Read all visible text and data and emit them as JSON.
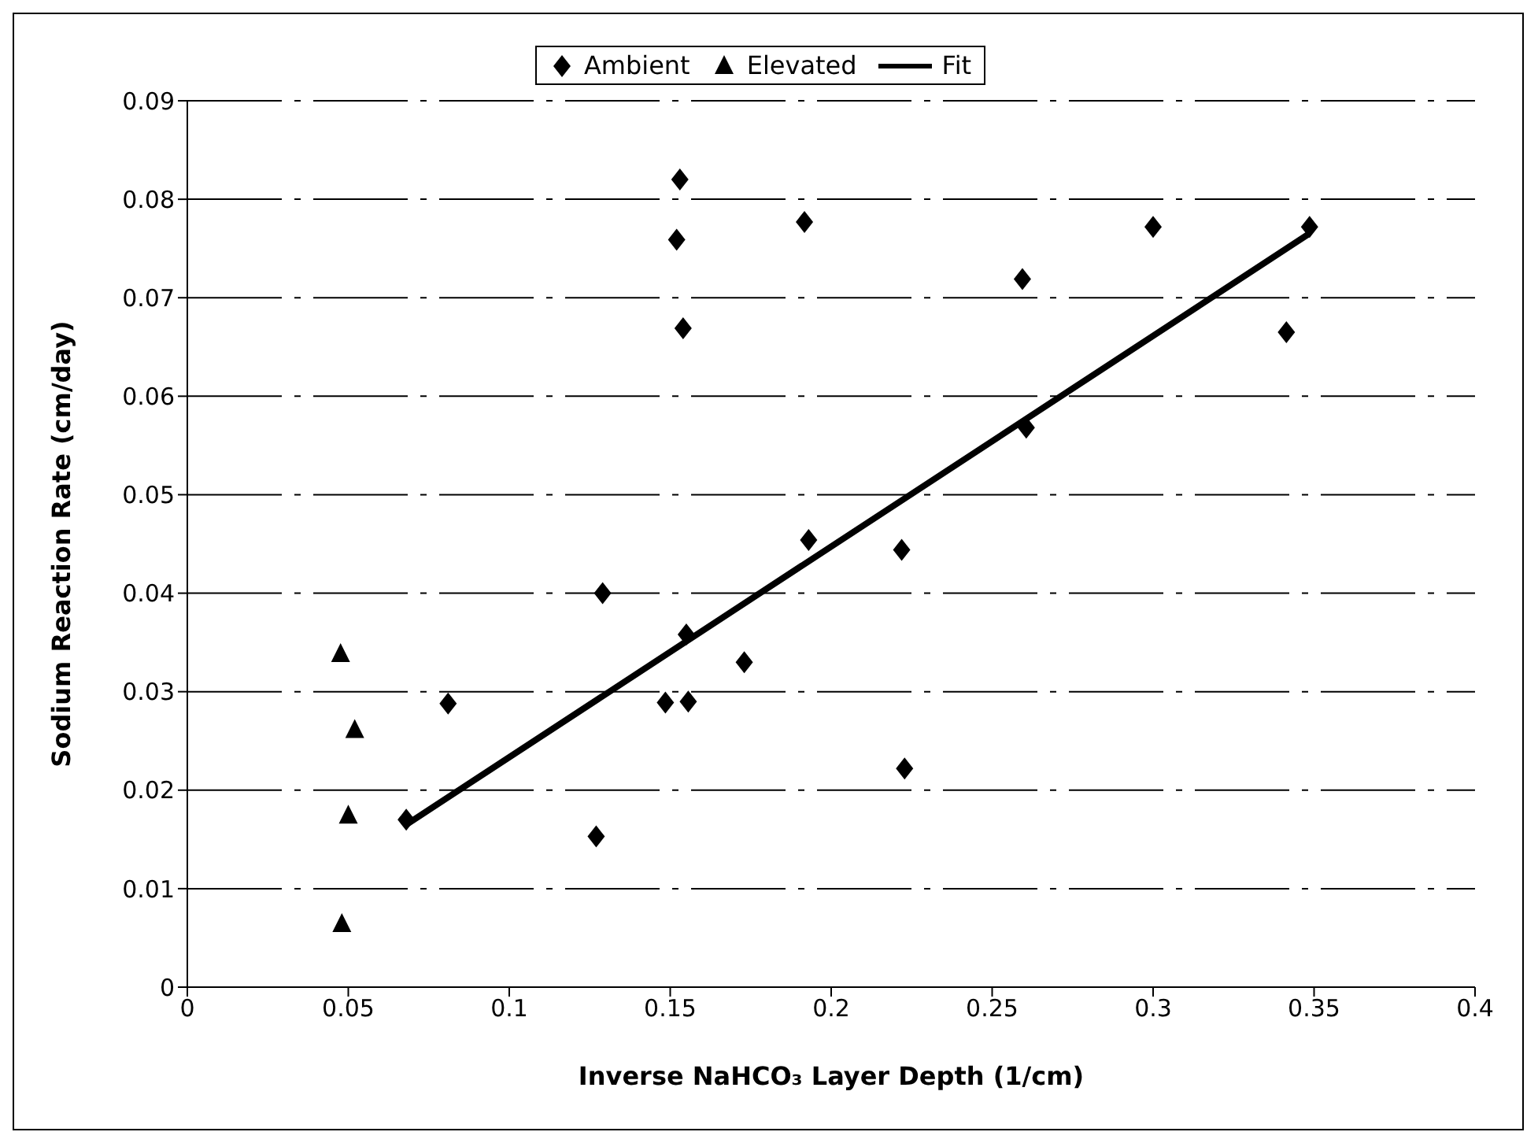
{
  "chart_data": {
    "type": "scatter",
    "xlabel": "Inverse NaHCO₃ Layer Depth (1/cm)",
    "ylabel": "Sodium Reaction Rate (cm/day)",
    "xlim": [
      0,
      0.4
    ],
    "xticks": [
      0,
      0.05,
      0.1,
      0.15,
      0.2,
      0.25,
      0.3,
      0.35,
      0.4
    ],
    "ylim": [
      0,
      0.09
    ],
    "yticks": [
      0,
      0.01,
      0.02,
      0.03,
      0.04,
      0.05,
      0.06,
      0.07,
      0.08,
      0.09
    ],
    "grid": "y",
    "legend": "top",
    "series": [
      {
        "name": "Ambient",
        "marker": "diamond",
        "color": "#000000",
        "x": [
          0.068,
          0.081,
          0.129,
          0.127,
          0.1485,
          0.1556,
          0.155,
          0.173,
          0.153,
          0.152,
          0.154,
          0.1917,
          0.193,
          0.2219,
          0.2228,
          0.2594,
          0.2606,
          0.3,
          0.3414,
          0.3486
        ],
        "values": [
          0.017,
          0.0288,
          0.04,
          0.0153,
          0.0289,
          0.029,
          0.0358,
          0.033,
          0.082,
          0.0759,
          0.0669,
          0.0777,
          0.0454,
          0.0444,
          0.0222,
          0.0719,
          0.0568,
          0.0772,
          0.0665,
          0.0772
        ]
      },
      {
        "name": "Elevated",
        "marker": "triangle",
        "color": "#000000",
        "x": [
          0.0476,
          0.052,
          0.05,
          0.048
        ],
        "values": [
          0.0338,
          0.0261,
          0.0174,
          0.0064
        ]
      },
      {
        "name": "Fit",
        "type": "line",
        "marker": "none",
        "line_style": "solid",
        "color": "#000000",
        "x": [
          0.068,
          0.348
        ],
        "values": [
          0.0165,
          0.0764
        ]
      }
    ]
  }
}
